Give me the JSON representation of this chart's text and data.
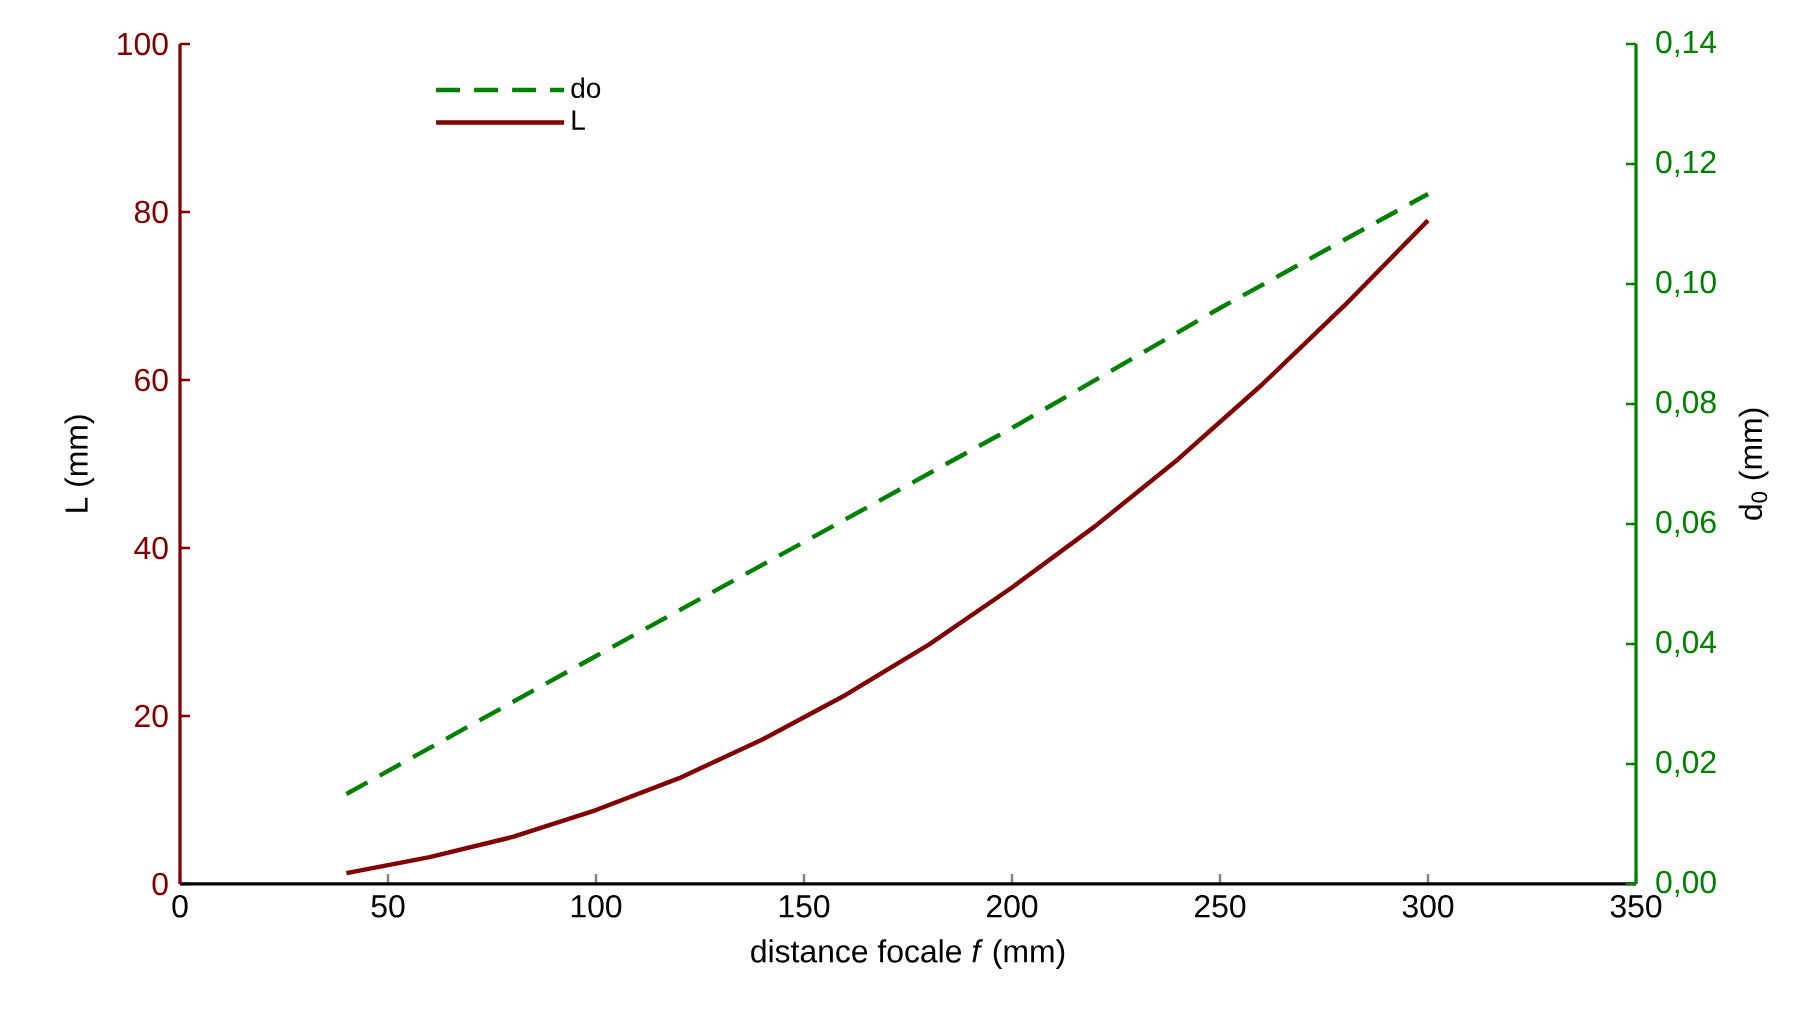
{
  "chart_data": {
    "type": "line",
    "xlabel": "distance focale *f* (mm)",
    "ylabel": "L (mm)",
    "y2label": "d$_{0}$ (mm)",
    "xlim": [
      0,
      350
    ],
    "xticks": [
      0,
      50,
      100,
      150,
      200,
      250,
      300,
      350
    ],
    "ylim": [
      0,
      100
    ],
    "yticks": [
      0,
      20,
      40,
      60,
      80,
      100
    ],
    "y2lim": [
      0,
      0.14
    ],
    "y2ticks": [
      {
        "value": 0,
        "label": "0,00"
      },
      {
        "value": 0.02,
        "label": "0,02"
      },
      {
        "value": 0.04,
        "label": "0,04"
      },
      {
        "value": 0.06,
        "label": "0,06"
      },
      {
        "value": 0.08,
        "label": "0,08"
      },
      {
        "value": 0.1,
        "label": "0,10"
      },
      {
        "value": 0.12,
        "label": "0,12"
      },
      {
        "value": 0.14,
        "label": "0,14"
      }
    ],
    "legend": "top left",
    "grid": false,
    "series": [
      {
        "name": "do",
        "color": "#008000",
        "axis": "y2",
        "line_style": "dashed",
        "x": [
          40,
          100,
          150,
          200,
          250,
          300
        ],
        "values": [
          0.015,
          0.038,
          0.057,
          0.076,
          0.096,
          0.115
        ]
      },
      {
        "name": "L",
        "color": "#800000",
        "line_style": "solid",
        "x": [
          40,
          60,
          80,
          100,
          120,
          140,
          160,
          180,
          200,
          220,
          240,
          260,
          280,
          300
        ],
        "values": [
          1.3,
          3.2,
          5.6,
          8.8,
          12.6,
          17.2,
          22.5,
          28.5,
          35.3,
          42.6,
          50.6,
          59.4,
          68.9,
          79
        ]
      }
    ]
  }
}
